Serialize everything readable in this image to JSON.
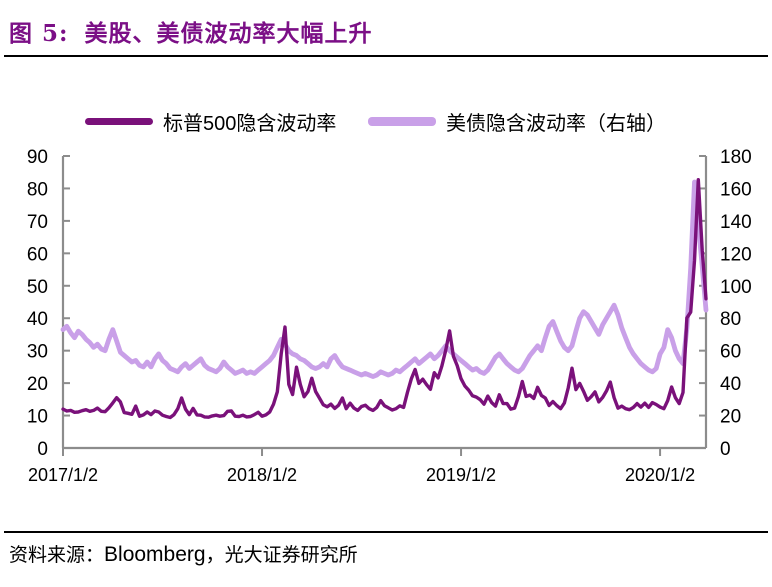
{
  "header": {
    "figure_label": "图 5:",
    "title": "美股、美债波动率大幅上升",
    "title_color": "#7B0F86"
  },
  "footer": {
    "prefix": "资料来源：",
    "source": "Bloomberg",
    "suffix": "，光大证券研究所"
  },
  "chart_data": {
    "type": "line",
    "title": "美股、美债波动率大幅上升",
    "x_start": "2017/1/2",
    "x_frequency": "weekly",
    "x_tick_labels": [
      "2017/1/2",
      "2018/1/2",
      "2019/1/2",
      "2020/1/2"
    ],
    "x_tick_indices": [
      0,
      52,
      104,
      156
    ],
    "y_left": {
      "min": 0,
      "max": 90,
      "ticks": [
        0,
        10,
        20,
        30,
        40,
        50,
        60,
        70,
        80,
        90
      ]
    },
    "y_right": {
      "min": 0,
      "max": 180,
      "ticks": [
        0,
        20,
        40,
        60,
        80,
        100,
        120,
        140,
        160,
        180
      ]
    },
    "axis_color": "#8C8C8C",
    "grid": false,
    "legend_position": "top",
    "series": [
      {
        "name": "标普500隐含波动率",
        "axis": "left",
        "color": "#7A117A",
        "values": [
          12.0,
          11.4,
          11.6,
          11.0,
          11.1,
          11.5,
          11.8,
          11.3,
          11.6,
          12.3,
          11.3,
          11.2,
          12.4,
          13.9,
          15.5,
          14.2,
          10.9,
          10.7,
          10.4,
          12.9,
          9.8,
          10.2,
          11.1,
          10.3,
          11.4,
          11.1,
          10.1,
          9.7,
          9.4,
          10.3,
          12.1,
          15.4,
          12.0,
          10.3,
          12.2,
          10.2,
          10.1,
          9.6,
          9.5,
          9.9,
          10.1,
          9.8,
          10.0,
          11.3,
          11.4,
          9.8,
          9.7,
          10.1,
          9.6,
          9.7,
          10.3,
          11.0,
          9.8,
          10.2,
          11.1,
          13.5,
          17.3,
          29.0,
          37.3,
          19.6,
          16.5,
          24.9,
          19.6,
          15.8,
          17.4,
          21.5,
          17.4,
          15.4,
          13.3,
          12.7,
          13.5,
          12.2,
          13.2,
          15.4,
          12.1,
          13.8,
          12.3,
          11.6,
          12.8,
          13.2,
          12.1,
          11.6,
          12.5,
          14.6,
          13.0,
          12.4,
          11.7,
          12.1,
          13.0,
          12.5,
          17.2,
          21.3,
          24.2,
          19.9,
          21.2,
          19.5,
          18.1,
          23.2,
          21.6,
          25.3,
          30.1,
          36.1,
          28.3,
          25.4,
          21.4,
          19.1,
          17.8,
          16.1,
          15.7,
          14.9,
          13.5,
          16.0,
          14.0,
          12.9,
          16.4,
          13.7,
          13.7,
          12.0,
          12.3,
          15.9,
          20.5,
          15.9,
          16.3,
          15.3,
          18.7,
          16.2,
          15.4,
          13.1,
          14.3,
          13.1,
          12.1,
          13.9,
          18.5,
          24.6,
          18.0,
          19.9,
          17.5,
          14.7,
          15.8,
          17.3,
          14.2,
          15.6,
          17.6,
          20.3,
          15.5,
          12.3,
          12.9,
          12.1,
          11.8,
          12.5,
          13.7,
          12.6,
          13.8,
          12.5,
          14.0,
          13.4,
          12.6,
          12.1,
          14.6,
          18.8,
          15.5,
          13.7,
          17.1,
          40.1,
          41.9,
          57.8,
          82.7,
          61.0,
          46.0
        ]
      },
      {
        "name": "美债隐含波动率（右轴）",
        "axis": "right",
        "color": "#C9A0E8",
        "values": [
          73,
          75,
          71,
          68,
          72,
          70,
          67,
          65,
          62,
          64,
          61,
          60,
          67,
          73,
          66,
          59,
          57,
          55,
          53,
          54,
          51,
          50,
          53,
          50,
          55,
          58,
          54,
          52,
          49,
          48,
          47,
          50,
          52,
          49,
          51,
          53,
          55,
          51,
          49,
          48,
          47,
          49,
          53,
          50,
          48,
          46,
          47,
          48,
          46,
          47,
          46,
          48,
          50,
          52,
          54,
          57,
          62,
          67,
          64,
          60,
          58,
          57,
          55,
          54,
          52,
          50,
          49,
          50,
          52,
          50,
          55,
          57,
          53,
          50,
          49,
          48,
          47,
          46,
          45,
          46,
          45,
          44,
          45,
          47,
          46,
          45,
          46,
          48,
          47,
          49,
          51,
          53,
          55,
          52,
          54,
          56,
          58,
          55,
          57,
          60,
          63,
          60,
          58,
          56,
          54,
          52,
          50,
          48,
          49,
          47,
          46,
          48,
          52,
          56,
          58,
          55,
          52,
          50,
          48,
          47,
          49,
          53,
          57,
          60,
          63,
          60,
          68,
          75,
          78,
          72,
          66,
          62,
          60,
          63,
          72,
          80,
          84,
          82,
          78,
          74,
          70,
          76,
          80,
          84,
          88,
          82,
          74,
          68,
          62,
          58,
          55,
          52,
          50,
          48,
          47,
          49,
          58,
          62,
          73,
          68,
          60,
          55,
          52,
          74,
          111,
          164,
          138,
          112,
          85
        ]
      }
    ]
  }
}
